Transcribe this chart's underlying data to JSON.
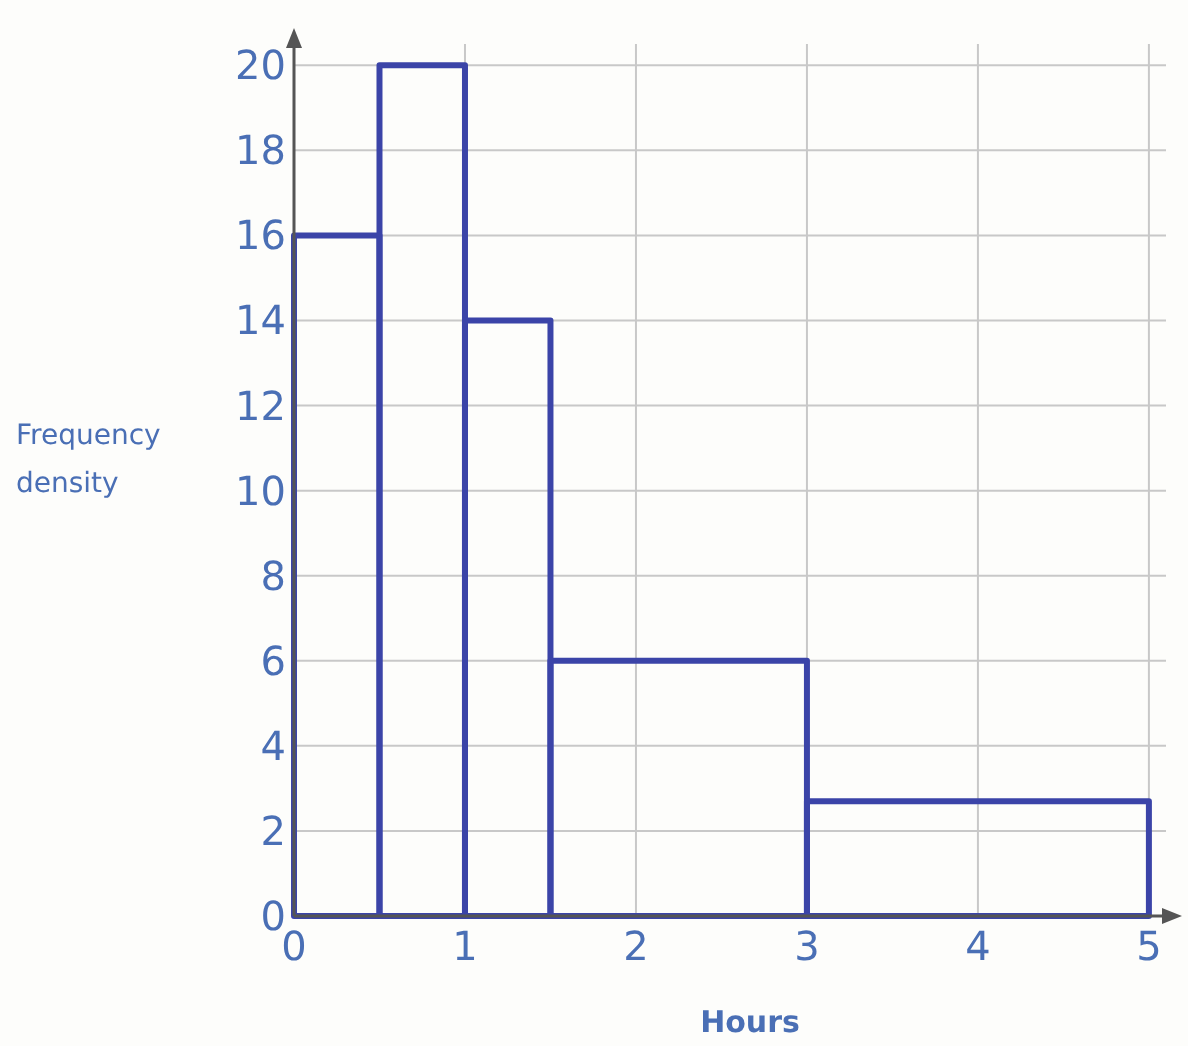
{
  "chart_data": {
    "type": "histogram",
    "xlabel": "Hours",
    "ylabel": "Frequency density",
    "bins": [
      0,
      0.5,
      1,
      1.5,
      3,
      5
    ],
    "values": [
      16,
      20,
      14,
      6,
      2.7
    ],
    "color": "#3b44a8",
    "xlim": [
      0,
      5.1
    ],
    "ylim": [
      0,
      20.5
    ],
    "xticks": [
      0,
      1,
      2,
      3,
      4,
      5
    ],
    "yticks": [
      0,
      2,
      4,
      6,
      8,
      10,
      12,
      14,
      16,
      18,
      20
    ],
    "grid": true
  }
}
